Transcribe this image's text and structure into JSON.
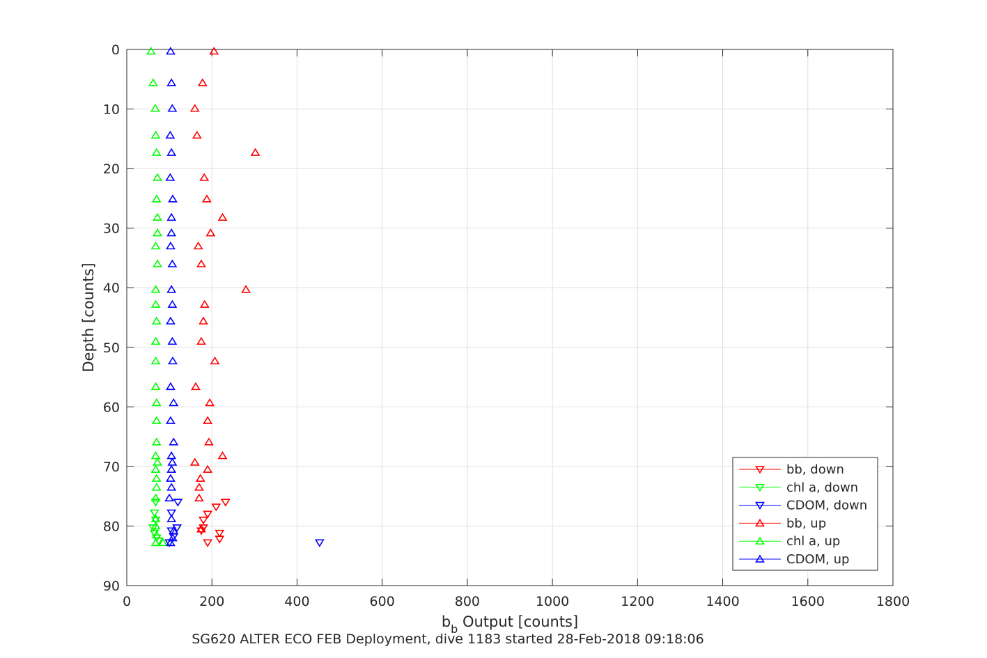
{
  "chart_data": {
    "type": "scatter",
    "xlabel_main": "b",
    "xlabel_sub": "b",
    "xlabel_rest": " Output [counts]",
    "ylabel": "Depth [counts]",
    "caption": "SG620 ALTER ECO FEB Deployment, dive 1183 started 28-Feb-2018 09:18:06",
    "xlim": [
      0,
      1800
    ],
    "ylim": [
      0,
      90
    ],
    "y_reversed": true,
    "x_ticks": [
      0,
      200,
      400,
      600,
      800,
      1000,
      1200,
      1400,
      1600,
      1800
    ],
    "y_ticks": [
      0,
      10,
      20,
      30,
      40,
      50,
      60,
      70,
      80,
      90
    ],
    "x_tick_labels": [
      "0",
      "200",
      "400",
      "600",
      "800",
      "1000",
      "1200",
      "1400",
      "1600",
      "1800"
    ],
    "y_tick_labels": [
      "0",
      "10",
      "20",
      "30",
      "40",
      "50",
      "60",
      "70",
      "80",
      "90"
    ],
    "grid": true,
    "legend_position": "bottom-right",
    "series": [
      {
        "name": "bb, down",
        "color": "#ff0000",
        "marker": "triangle-down",
        "points": [
          [
            232,
            76.0
          ],
          [
            210,
            76.8
          ],
          [
            190,
            78.0
          ],
          [
            180,
            79.0
          ],
          [
            180,
            80.3
          ],
          [
            175,
            80.8
          ],
          [
            218,
            81.2
          ],
          [
            218,
            82.2
          ],
          [
            190,
            82.8
          ]
        ]
      },
      {
        "name": "chl a, down",
        "color": "#00ff00",
        "marker": "triangle-down",
        "points": [
          [
            68,
            76.0
          ],
          [
            65,
            77.8
          ],
          [
            68,
            79.0
          ],
          [
            62,
            80.3
          ],
          [
            65,
            81.2
          ],
          [
            70,
            82.0
          ],
          [
            75,
            82.5
          ]
        ]
      },
      {
        "name": "CDOM, down",
        "color": "#0000ff",
        "marker": "triangle-down",
        "points": [
          [
            120,
            76.0
          ],
          [
            105,
            77.8
          ],
          [
            118,
            80.3
          ],
          [
            105,
            80.8
          ],
          [
            110,
            81.8
          ],
          [
            100,
            82.8
          ],
          [
            453,
            82.8
          ]
        ]
      },
      {
        "name": "bb, up",
        "color": "#ff0000",
        "marker": "triangle-up",
        "points": [
          [
            205,
            0.3
          ],
          [
            178,
            5.6
          ],
          [
            160,
            9.9
          ],
          [
            165,
            14.4
          ],
          [
            302,
            17.3
          ],
          [
            182,
            21.5
          ],
          [
            188,
            25.1
          ],
          [
            225,
            28.2
          ],
          [
            197,
            30.8
          ],
          [
            168,
            33.0
          ],
          [
            175,
            36.0
          ],
          [
            280,
            40.3
          ],
          [
            183,
            42.8
          ],
          [
            180,
            45.6
          ],
          [
            175,
            49.0
          ],
          [
            207,
            52.3
          ],
          [
            162,
            56.6
          ],
          [
            195,
            59.3
          ],
          [
            190,
            62.3
          ],
          [
            193,
            65.9
          ],
          [
            225,
            68.2
          ],
          [
            160,
            69.3
          ],
          [
            190,
            70.5
          ],
          [
            173,
            72.0
          ],
          [
            170,
            73.5
          ],
          [
            170,
            75.3
          ],
          [
            175,
            80.5
          ]
        ]
      },
      {
        "name": "chl a, up",
        "color": "#00ff00",
        "marker": "triangle-up",
        "points": [
          [
            57,
            0.3
          ],
          [
            62,
            5.6
          ],
          [
            67,
            9.9
          ],
          [
            68,
            14.4
          ],
          [
            70,
            17.3
          ],
          [
            72,
            21.5
          ],
          [
            70,
            25.1
          ],
          [
            72,
            28.2
          ],
          [
            72,
            30.8
          ],
          [
            68,
            33.0
          ],
          [
            72,
            36.0
          ],
          [
            68,
            40.3
          ],
          [
            68,
            42.8
          ],
          [
            70,
            45.6
          ],
          [
            68,
            49.0
          ],
          [
            68,
            52.3
          ],
          [
            68,
            56.6
          ],
          [
            70,
            59.3
          ],
          [
            70,
            62.3
          ],
          [
            70,
            65.9
          ],
          [
            68,
            68.2
          ],
          [
            72,
            69.3
          ],
          [
            68,
            70.5
          ],
          [
            70,
            72.0
          ],
          [
            70,
            73.5
          ],
          [
            68,
            75.3
          ],
          [
            68,
            78.8
          ],
          [
            68,
            80.0
          ],
          [
            70,
            81.5
          ],
          [
            68,
            82.8
          ],
          [
            85,
            82.8
          ]
        ]
      },
      {
        "name": "CDOM, up",
        "color": "#0000ff",
        "marker": "triangle-up",
        "points": [
          [
            103,
            0.3
          ],
          [
            105,
            5.6
          ],
          [
            107,
            9.9
          ],
          [
            102,
            14.4
          ],
          [
            105,
            17.3
          ],
          [
            102,
            21.5
          ],
          [
            108,
            25.1
          ],
          [
            105,
            28.2
          ],
          [
            105,
            30.8
          ],
          [
            103,
            33.0
          ],
          [
            107,
            36.0
          ],
          [
            105,
            40.3
          ],
          [
            107,
            42.8
          ],
          [
            103,
            45.6
          ],
          [
            107,
            49.0
          ],
          [
            108,
            52.3
          ],
          [
            103,
            56.6
          ],
          [
            110,
            59.3
          ],
          [
            103,
            62.3
          ],
          [
            110,
            65.9
          ],
          [
            105,
            68.2
          ],
          [
            107,
            69.3
          ],
          [
            105,
            70.5
          ],
          [
            103,
            72.0
          ],
          [
            105,
            73.5
          ],
          [
            100,
            75.3
          ],
          [
            105,
            78.8
          ],
          [
            110,
            80.8
          ],
          [
            108,
            82.0
          ],
          [
            103,
            82.8
          ]
        ]
      }
    ]
  }
}
